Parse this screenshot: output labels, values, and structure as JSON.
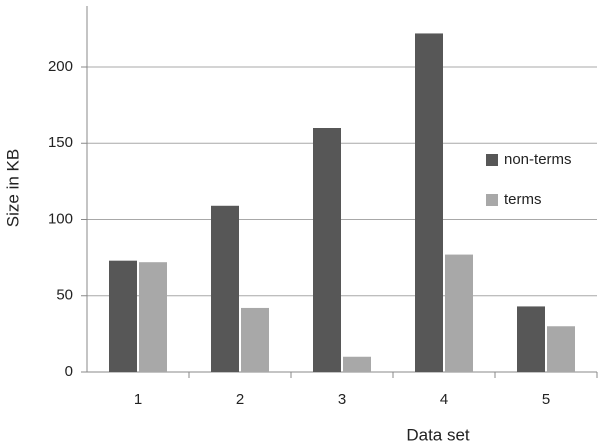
{
  "chart_data": {
    "type": "bar",
    "x_label": "Data set",
    "y_label": "Size in KB",
    "categories": [
      "1",
      "2",
      "3",
      "4",
      "5"
    ],
    "series": [
      {
        "name": "non-terms",
        "color": "#575757",
        "values": [
          73,
          109,
          160,
          222,
          43
        ]
      },
      {
        "name": "terms",
        "color": "#a8a8a8",
        "values": [
          72,
          42,
          10,
          77,
          30
        ]
      }
    ],
    "ylim": [
      0,
      240
    ],
    "yticks": [
      0,
      50,
      100,
      150,
      200
    ],
    "grid": true,
    "legend": "right"
  }
}
